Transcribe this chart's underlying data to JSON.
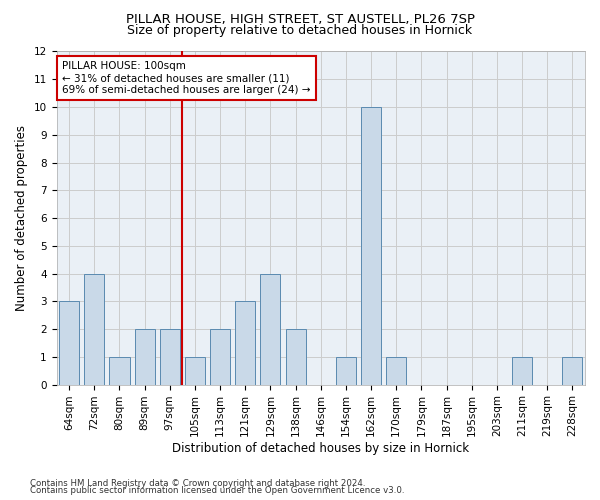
{
  "title1": "PILLAR HOUSE, HIGH STREET, ST AUSTELL, PL26 7SP",
  "title2": "Size of property relative to detached houses in Hornick",
  "xlabel": "Distribution of detached houses by size in Hornick",
  "ylabel": "Number of detached properties",
  "categories": [
    "64sqm",
    "72sqm",
    "80sqm",
    "89sqm",
    "97sqm",
    "105sqm",
    "113sqm",
    "121sqm",
    "129sqm",
    "138sqm",
    "146sqm",
    "154sqm",
    "162sqm",
    "170sqm",
    "179sqm",
    "187sqm",
    "195sqm",
    "203sqm",
    "211sqm",
    "219sqm",
    "228sqm"
  ],
  "values": [
    3,
    4,
    1,
    2,
    2,
    1,
    2,
    3,
    4,
    2,
    0,
    1,
    10,
    1,
    0,
    0,
    0,
    0,
    1,
    0,
    1
  ],
  "bar_color": "#c9d9e8",
  "bar_edge_color": "#5a8ab0",
  "annotation_text_line1": "PILLAR HOUSE: 100sqm",
  "annotation_text_line2": "← 31% of detached houses are smaller (11)",
  "annotation_text_line3": "69% of semi-detached houses are larger (24) →",
  "annotation_box_color": "#ffffff",
  "annotation_box_edge_color": "#cc0000",
  "vline_color": "#cc0000",
  "vline_x_index": 4,
  "ylim": [
    0,
    12
  ],
  "yticks": [
    0,
    1,
    2,
    3,
    4,
    5,
    6,
    7,
    8,
    9,
    10,
    11,
    12
  ],
  "grid_color": "#cccccc",
  "background_color": "#eaf0f6",
  "footnote1": "Contains HM Land Registry data © Crown copyright and database right 2024.",
  "footnote2": "Contains public sector information licensed under the Open Government Licence v3.0.",
  "title1_fontsize": 9.5,
  "title2_fontsize": 9,
  "axis_label_fontsize": 8.5,
  "tick_fontsize": 7.5,
  "annotation_fontsize": 7.5,
  "footnote_fontsize": 6.2
}
